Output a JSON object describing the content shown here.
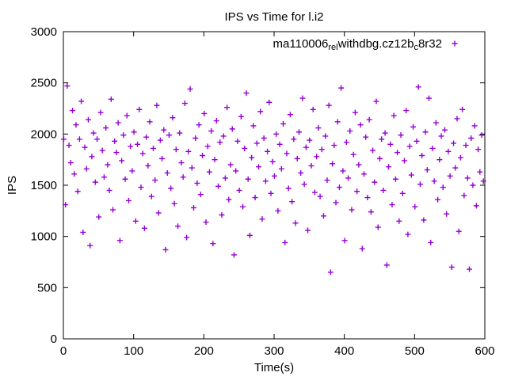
{
  "window": {
    "title": "IPS vs Time for l.i2"
  },
  "chart_data": {
    "type": "scatter",
    "title": "IPS vs Time for l.i2",
    "xlabel": "Time(s)",
    "ylabel": "IPS",
    "xlim": [
      0,
      600
    ],
    "ylim": [
      0,
      3000
    ],
    "xticks": [
      0,
      100,
      200,
      300,
      400,
      500,
      600
    ],
    "yticks": [
      0,
      500,
      1000,
      1500,
      2000,
      2500,
      3000
    ],
    "grid": "off",
    "legend_position": "top-right-inside",
    "marker_color": "#9400d3",
    "series": [
      {
        "name_raw": "ma110006_rel_withdbg.cz12b_c8r32",
        "label_parts": [
          {
            "text": "ma110006",
            "sub": false
          },
          {
            "text": "rel",
            "sub": true
          },
          {
            "text": "withdbg.cz12b",
            "sub": false
          },
          {
            "text": "c",
            "sub": true
          },
          {
            "text": "8r32",
            "sub": false
          }
        ],
        "marker": "plus",
        "color": "#9400d3",
        "x_start": 0.5,
        "x_step": 2.5,
        "y": [
          1950,
          1310,
          2470,
          1890,
          1720,
          2230,
          1610,
          2090,
          1440,
          1950,
          2320,
          1040,
          1870,
          1660,
          2140,
          910,
          1780,
          2010,
          1530,
          1950,
          1190,
          2210,
          1840,
          1580,
          2060,
          1700,
          1450,
          2340,
          1260,
          1930,
          1820,
          2110,
          960,
          1740,
          1990,
          1560,
          2180,
          1350,
          1880,
          1640,
          2020,
          1150,
          1900,
          2240,
          1480,
          1810,
          1080,
          1970,
          1690,
          2120,
          1390,
          1860,
          1550,
          2280,
          1230,
          1940,
          1760,
          2040,
          870,
          1620,
          1990,
          1470,
          2160,
          1320,
          1850,
          1100,
          2010,
          1720,
          1580,
          2300,
          990,
          1830,
          2440,
          1670,
          1280,
          1960,
          1520,
          2090,
          1410,
          1790,
          2200,
          1140,
          1880,
          1630,
          2030,
          930,
          1750,
          2130,
          1490,
          1920,
          1210,
          1980,
          1570,
          2260,
          1360,
          1700,
          2050,
          820,
          1640,
          1930,
          1450,
          2170,
          1290,
          1860,
          2400,
          1560,
          1010,
          1770,
          2080,
          1380,
          1910,
          1680,
          2220,
          1170,
          1960,
          1540,
          1830,
          2310,
          1420,
          1730,
          1590,
          2000,
          1250,
          1900,
          1660,
          2100,
          940,
          1810,
          1470,
          2190,
          1340,
          1950,
          1130,
          1760,
          2020,
          1620,
          2350,
          1510,
          1870,
          1060,
          1940,
          1690,
          2240,
          1430,
          1780,
          2060,
          1390,
          1850,
          1200,
          1980,
          1550,
          2280,
          650,
          1710,
          1890,
          1330,
          2120,
          1480,
          2450,
          1640,
          960,
          1920,
          1570,
          2030,
          1260,
          1800,
          2210,
          1440,
          1700,
          2090,
          880,
          1610,
          1970,
          1380,
          2140,
          1240,
          1840,
          1530,
          2320,
          1090,
          1760,
          1950,
          1450,
          2010,
          720,
          1680,
          1900,
          1310,
          2180,
          1560,
          1820,
          1150,
          1990,
          1420,
          1740,
          2230,
          1020,
          1880,
          1600,
          2070,
          1290,
          1930,
          2460,
          1510,
          1790,
          1160,
          2020,
          1650,
          2350,
          940,
          1860,
          1540,
          2110,
          1360,
          1750,
          1980,
          1480,
          2040,
          1220,
          1830,
          1590,
          700,
          1910,
          1670,
          2150,
          1050,
          1770,
          2240,
          1400,
          1890,
          1570,
          680,
          1960,
          1500,
          2080,
          1300,
          1850,
          1630,
          1990,
          1540
        ]
      }
    ]
  }
}
